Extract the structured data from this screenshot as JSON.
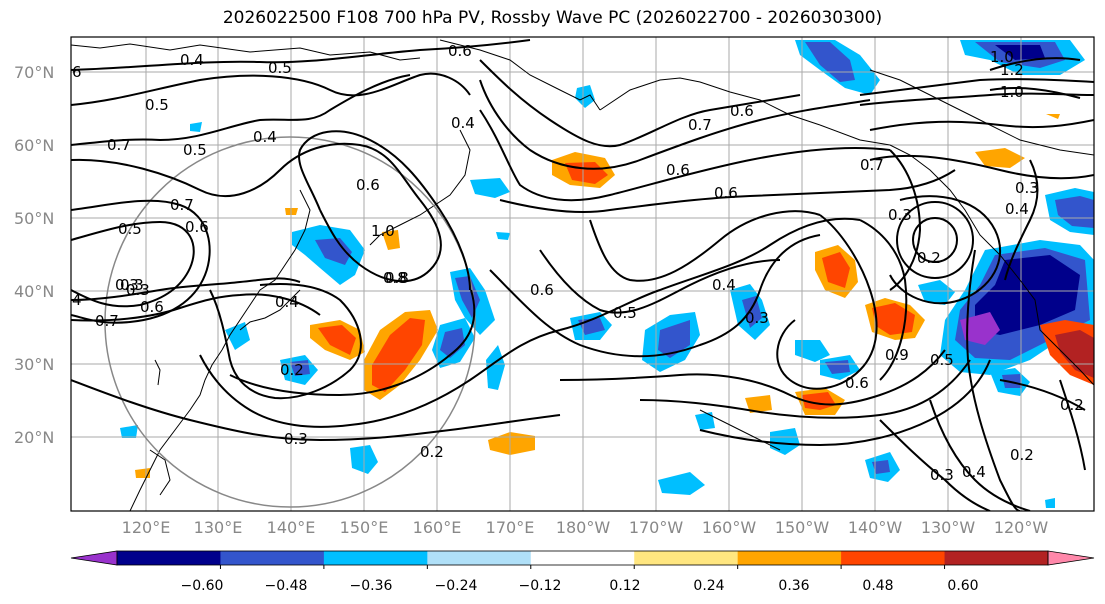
{
  "title": "2026022500 F108 700 hPa PV, Rossby Wave PC (2026022700 - 2026030300)",
  "lon_labels": [
    "120°E",
    "130°E",
    "140°E",
    "150°E",
    "160°E",
    "170°E",
    "180°W",
    "170°W",
    "160°W",
    "150°W",
    "140°W",
    "130°W",
    "120°W"
  ],
  "lat_labels": [
    "70°N",
    "60°N",
    "50°N",
    "40°N",
    "30°N",
    "20°N"
  ],
  "contour_labels": [
    "6",
    "0.7",
    "0.5",
    "0.4",
    "0.5",
    "0.4",
    "0.6",
    "0.7",
    "0.6",
    "0.4",
    "0.6",
    "0.8",
    "0.6",
    "0.7",
    "0.3",
    "1.0",
    "1.2",
    "1.0",
    "0.7",
    "0.3",
    "0.4",
    "0.5",
    "0.3",
    "0.6",
    "0.7",
    "0.8",
    "0.6",
    "0.5",
    "0.4",
    "0.3",
    "0.2",
    "0.4",
    "0.3",
    "0.6",
    "0.5",
    "0.5",
    "0.3",
    "0.2",
    "0.3",
    "0.2",
    "0.3",
    "0.4",
    "0.2",
    "0.2",
    "4",
    "1.0",
    "0.6",
    "0.6",
    "0.9"
  ],
  "colorbar": {
    "colors": [
      "#9932cc",
      "#00008b",
      "#3355cc",
      "#00bfff",
      "#b0e0f8",
      "#ffffff",
      "#ffe680",
      "#ffa500",
      "#ff4500",
      "#b22222",
      "#ff88aa"
    ],
    "tick_labels": [
      "−0.60",
      "−0.48",
      "−0.36",
      "−0.24",
      "−0.12",
      "0.12",
      "0.24",
      "0.36",
      "0.48",
      "0.60"
    ]
  },
  "shading_colors": {
    "light_blue": "#00bfff",
    "mid_blue": "#3355cc",
    "dark_blue": "#00008b",
    "purple": "#9932cc",
    "yellow": "#ffe680",
    "orange": "#ffa500",
    "red_orange": "#ff4500",
    "dark_red": "#b22222"
  }
}
